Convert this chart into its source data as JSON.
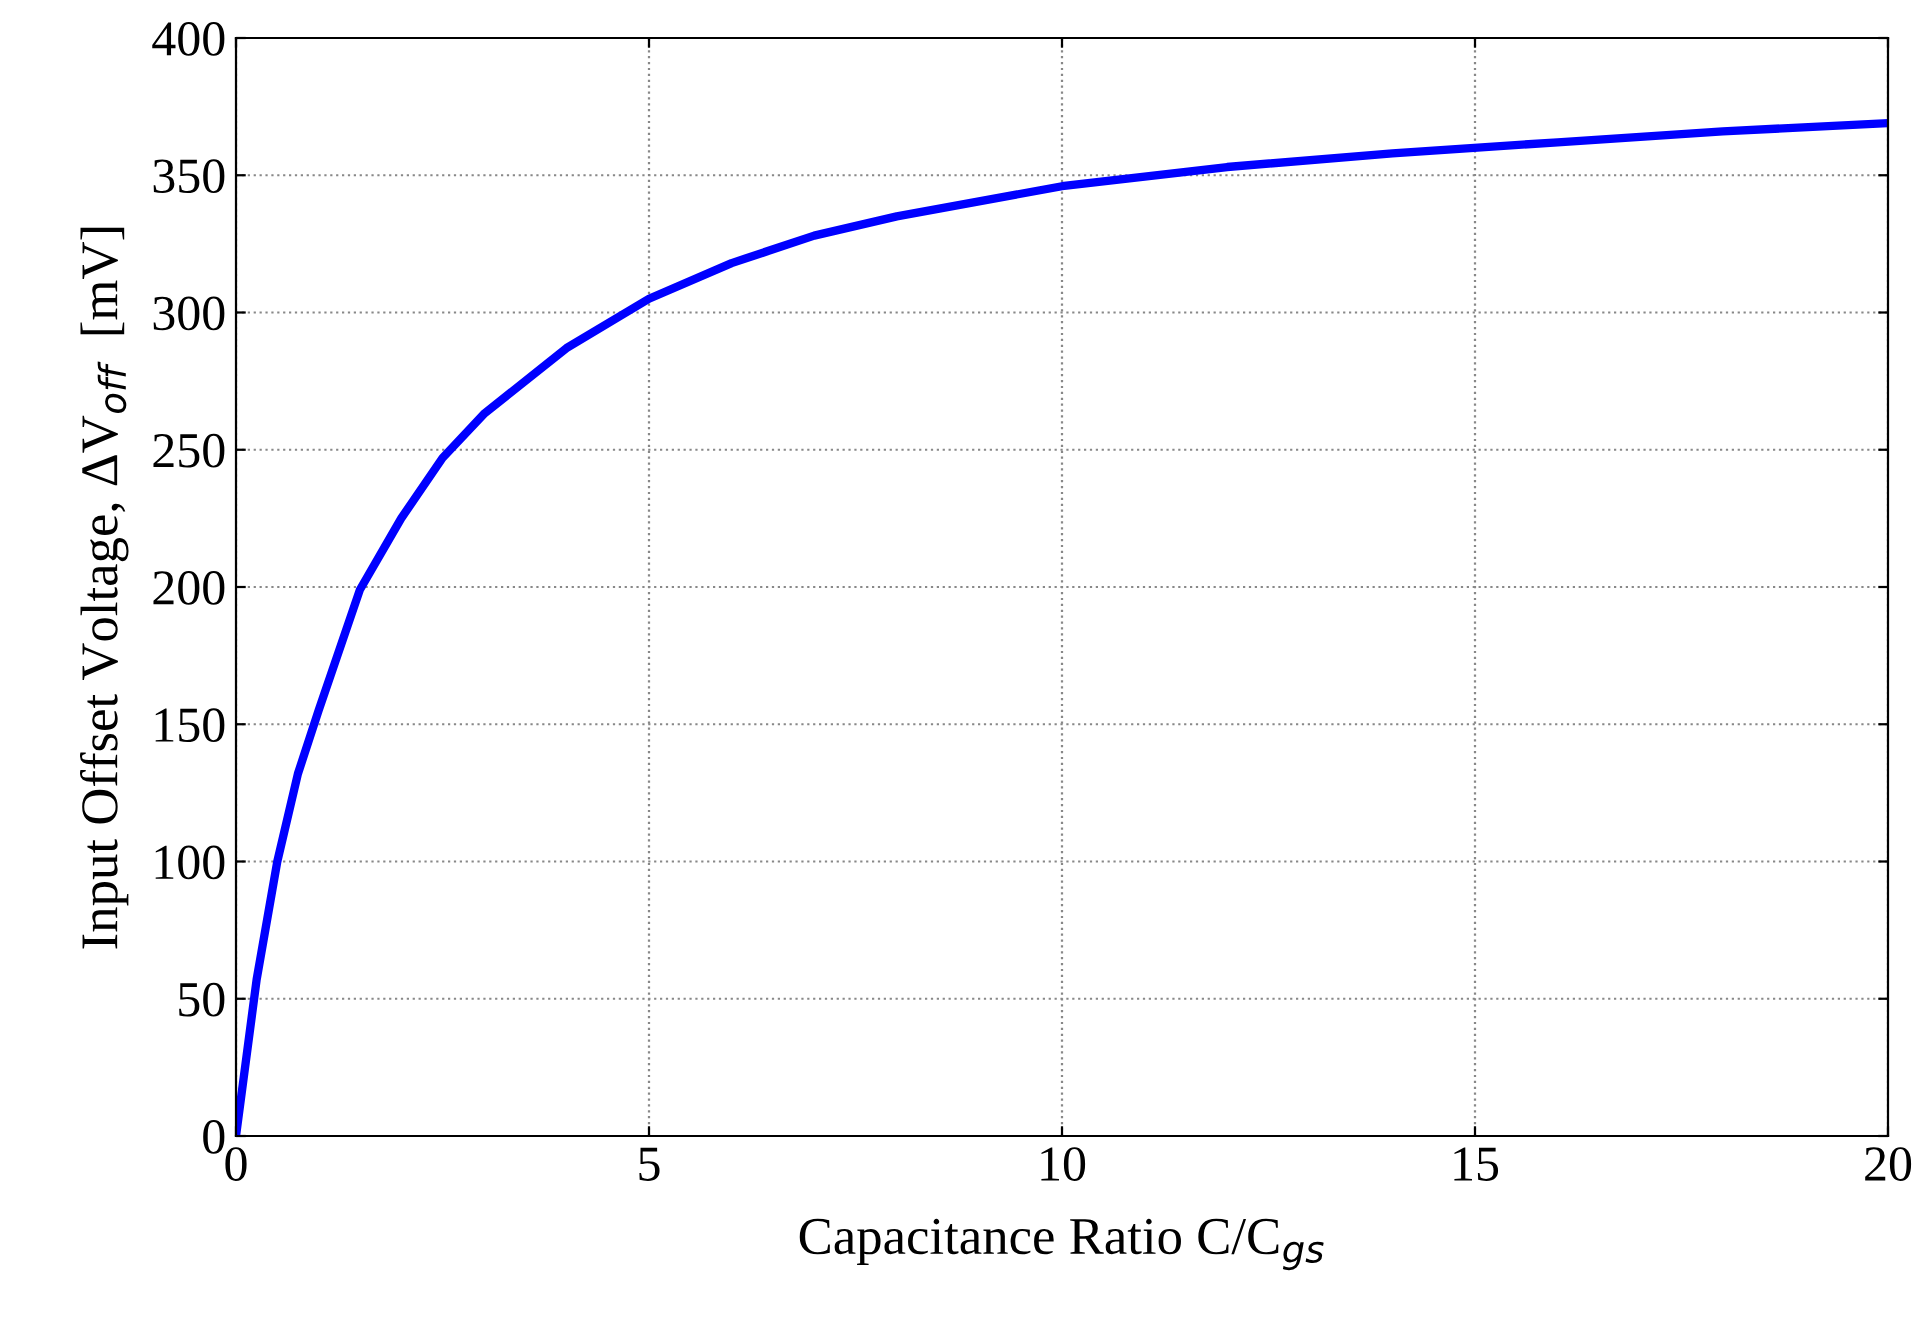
{
  "chart_data": {
    "type": "line",
    "xlabel": "Capacitance Ratio C/C$_{gs}$",
    "ylabel": "Input Offset Voltage, ΔV$_{off}$  [mV]",
    "series": [
      {
        "color": "#0000ff",
        "x": [
          0,
          0.25,
          0.5,
          0.75,
          1,
          1.5,
          2,
          2.5,
          3,
          4,
          5,
          6,
          7,
          8,
          10,
          12,
          14,
          16,
          18,
          20
        ],
        "values": [
          0,
          57,
          100,
          132,
          155,
          199,
          225,
          247,
          263,
          287,
          305,
          318,
          328,
          335,
          346,
          353,
          358,
          362,
          366,
          369
        ]
      }
    ],
    "xlim": [
      0,
      20
    ],
    "xticks": [
      0,
      5,
      10,
      15,
      20
    ],
    "ylim": [
      0,
      400
    ],
    "yticks": [
      0,
      50,
      100,
      150,
      200,
      250,
      300,
      350,
      400
    ],
    "grid": true,
    "line_style": "solid",
    "marker": "none",
    "legend": false
  }
}
